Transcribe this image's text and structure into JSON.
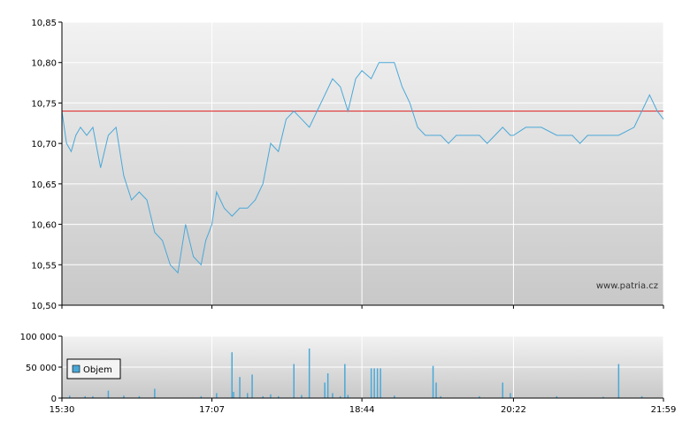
{
  "watermark": "www.patria.cz",
  "colors": {
    "price_line": "#4aa8d8",
    "reference_line": "#e02020",
    "volume_bar": "#4aa8d8",
    "grid": "#ffffff",
    "panel_top": "#f2f2f2",
    "panel_bottom": "#c8c8c8",
    "axis": "#000000"
  },
  "chart_data": [
    {
      "type": "line",
      "title": "",
      "xlabel": "",
      "ylabel": "",
      "x_tick_labels": [
        "15:30",
        "17:07",
        "18:44",
        "20:22",
        "21:59"
      ],
      "y_tick_labels": [
        "10,85",
        "10,80",
        "10,75",
        "10,70",
        "10,65",
        "10,60",
        "10,55",
        "10,50"
      ],
      "ylim": [
        10.5,
        10.85
      ],
      "xlim": [
        "15:30",
        "21:59"
      ],
      "grid": true,
      "reference_value": 10.74,
      "series": [
        {
          "x": [
            "15:30",
            "15:33",
            "15:36",
            "15:39",
            "15:42",
            "15:46",
            "15:50",
            "15:55",
            "16:00",
            "16:05",
            "16:10",
            "16:15",
            "16:20",
            "16:25",
            "16:30",
            "16:35",
            "16:40",
            "16:45",
            "16:50",
            "16:55",
            "17:00",
            "17:03",
            "17:07",
            "17:10",
            "17:15",
            "17:20",
            "17:25",
            "17:30",
            "17:35",
            "17:40",
            "17:45",
            "17:50",
            "17:55",
            "18:00",
            "18:05",
            "18:10",
            "18:15",
            "18:20",
            "18:25",
            "18:30",
            "18:35",
            "18:40",
            "18:44",
            "18:50",
            "18:55",
            "19:00",
            "19:05",
            "19:10",
            "19:15",
            "19:20",
            "19:25",
            "19:30",
            "19:35",
            "19:40",
            "19:45",
            "19:50",
            "19:55",
            "20:00",
            "20:05",
            "20:10",
            "20:15",
            "20:20",
            "20:22",
            "20:30",
            "20:40",
            "20:50",
            "21:00",
            "21:05",
            "21:10",
            "21:20",
            "21:30",
            "21:40",
            "21:50",
            "21:55",
            "21:59"
          ],
          "y": [
            10.74,
            10.7,
            10.69,
            10.71,
            10.72,
            10.71,
            10.72,
            10.67,
            10.71,
            10.72,
            10.66,
            10.63,
            10.64,
            10.63,
            10.59,
            10.58,
            10.55,
            10.54,
            10.6,
            10.56,
            10.55,
            10.58,
            10.6,
            10.64,
            10.62,
            10.61,
            10.62,
            10.62,
            10.63,
            10.65,
            10.7,
            10.69,
            10.73,
            10.74,
            10.73,
            10.72,
            10.74,
            10.76,
            10.78,
            10.77,
            10.74,
            10.78,
            10.79,
            10.78,
            10.8,
            10.8,
            10.8,
            10.77,
            10.75,
            10.72,
            10.71,
            10.71,
            10.71,
            10.7,
            10.71,
            10.71,
            10.71,
            10.71,
            10.7,
            10.71,
            10.72,
            10.71,
            10.71,
            10.72,
            10.72,
            10.71,
            10.71,
            10.7,
            10.71,
            10.71,
            10.71,
            10.72,
            10.76,
            10.74,
            10.73
          ]
        }
      ]
    },
    {
      "type": "bar",
      "title": "",
      "xlabel": "",
      "ylabel": "",
      "x_tick_labels": [
        "15:30",
        "17:07",
        "18:44",
        "20:22",
        "21:59"
      ],
      "y_tick_labels": [
        "100 000",
        "50 000",
        "0"
      ],
      "ylim": [
        0,
        100000
      ],
      "grid": true,
      "legend": "top-left",
      "series": [
        {
          "name": "Objem",
          "x": [
            "15:35",
            "15:45",
            "15:50",
            "16:00",
            "16:10",
            "16:20",
            "16:30",
            "17:00",
            "17:10",
            "17:20",
            "17:21",
            "17:25",
            "17:30",
            "17:33",
            "17:40",
            "17:45",
            "17:50",
            "18:00",
            "18:05",
            "18:10",
            "18:20",
            "18:22",
            "18:25",
            "18:30",
            "18:33",
            "18:35",
            "18:50",
            "18:52",
            "18:54",
            "18:56",
            "19:05",
            "19:30",
            "19:32",
            "19:35",
            "20:00",
            "20:15",
            "20:20",
            "20:50",
            "21:20",
            "21:30",
            "21:45"
          ],
          "values": [
            4000,
            3000,
            3000,
            12000,
            4000,
            3000,
            15000,
            3000,
            8000,
            74000,
            10000,
            34000,
            8000,
            38000,
            3000,
            6000,
            3000,
            55000,
            5000,
            80000,
            25000,
            40000,
            8000,
            3000,
            55000,
            5000,
            48000,
            48000,
            48000,
            48000,
            4000,
            52000,
            25000,
            3000,
            3000,
            25000,
            8000,
            3000,
            2000,
            55000,
            3000
          ]
        }
      ]
    }
  ]
}
